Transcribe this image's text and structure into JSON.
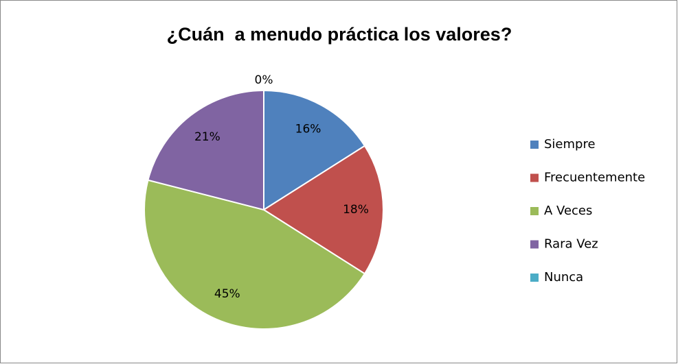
{
  "chart_data": {
    "type": "pie",
    "title": "¿Cuán  a menudo práctica los valores?",
    "categories": [
      "Siempre",
      "Frecuentemente",
      "A Veces",
      "Rara Vez",
      "Nunca"
    ],
    "values": [
      16,
      18,
      45,
      21,
      0
    ],
    "value_labels": [
      "16%",
      "18%",
      "45%",
      "21%",
      "0%"
    ],
    "colors": [
      "#4f81bd",
      "#c0504d",
      "#9bbb59",
      "#8064a2",
      "#4bacc6"
    ],
    "legend": "right"
  }
}
